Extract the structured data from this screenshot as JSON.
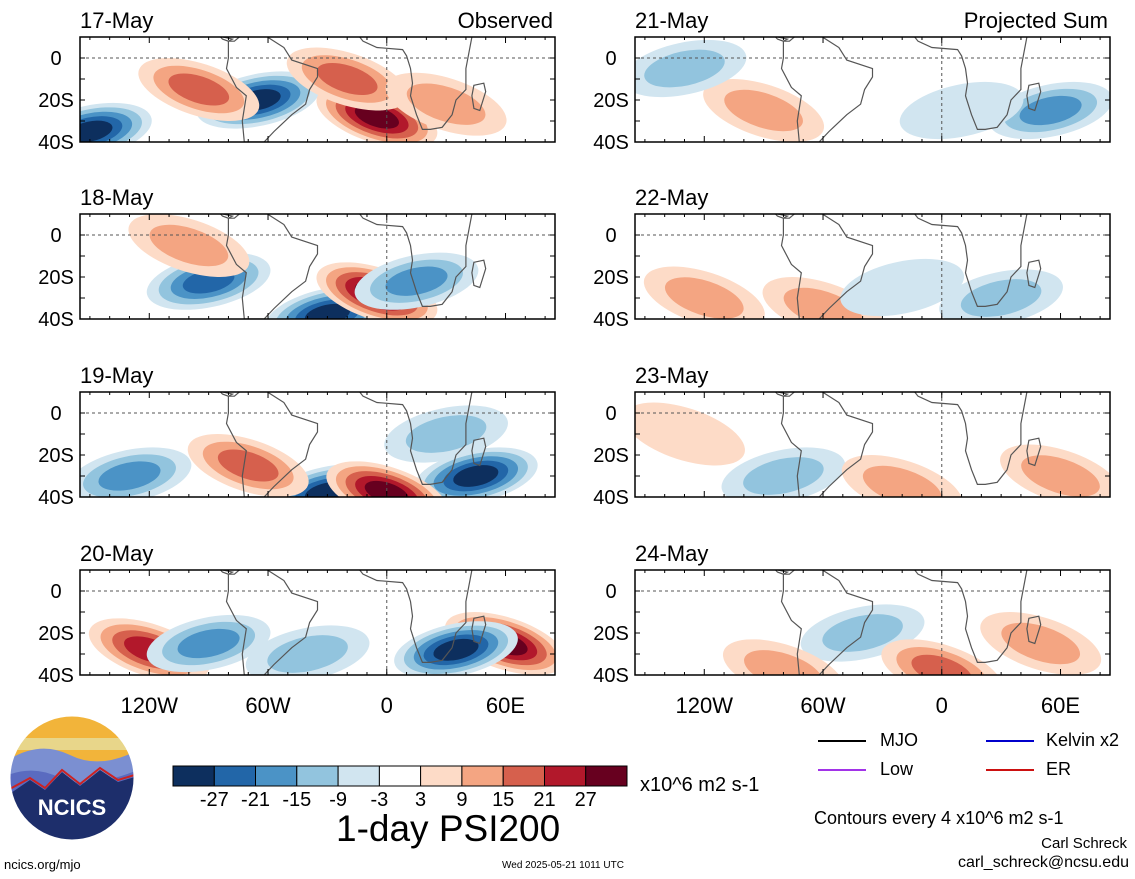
{
  "figure": {
    "main_title": "1-day PSI200",
    "units": "x10^6 m2 s-1",
    "contour_note": "Contours every 4 x10^6 m2 s-1",
    "author": "Carl Schreck",
    "email": "carl_schreck@ncsu.edu",
    "site": "ncics.org/mjo",
    "timestamp": "Wed 2025-05-21 1011 UTC",
    "logo_text": "NCICS"
  },
  "columns": {
    "left_label": "Observed",
    "right_label": "Projected Sum"
  },
  "colorbar": {
    "colors": [
      "#0d2f5e",
      "#2266a8",
      "#4b93c6",
      "#92c4de",
      "#d1e5f0",
      "#ffffff",
      "#fddbc7",
      "#f4a582",
      "#d6604d",
      "#b2182b",
      "#67001f"
    ],
    "labels": [
      "-27",
      "-21",
      "-15",
      "-9",
      "-3",
      "3",
      "9",
      "15",
      "21",
      "27"
    ]
  },
  "legend": [
    {
      "name": "MJO",
      "color": "#000000"
    },
    {
      "name": "Kelvin x2",
      "color": "#0000cc"
    },
    {
      "name": "Low",
      "color": "#a233e8"
    },
    {
      "name": "ER",
      "color": "#cc1111"
    }
  ],
  "chart_data": [
    {
      "type": "heatmap",
      "title": "17-May",
      "panel_label": "Observed",
      "x_ticks": [
        "120W",
        "60W",
        "0",
        "60E"
      ],
      "y_ticks": [
        "0",
        "20S",
        "40S"
      ],
      "features": [
        {
          "lon": -65,
          "lat": -20,
          "value": -27
        },
        {
          "lon": -150,
          "lat": -35,
          "value": -27
        },
        {
          "lon": -95,
          "lat": -15,
          "value": 15
        },
        {
          "lon": -5,
          "lat": -28,
          "value": 27
        },
        {
          "lon": -20,
          "lat": -10,
          "value": 15
        },
        {
          "lon": 30,
          "lat": -22,
          "value": 9
        }
      ]
    },
    {
      "type": "heatmap",
      "title": "18-May",
      "x_ticks": [
        "120W",
        "60W",
        "0",
        "60E"
      ],
      "y_ticks": [
        "0",
        "20S",
        "40S"
      ],
      "features": [
        {
          "lon": -90,
          "lat": -22,
          "value": -21
        },
        {
          "lon": -30,
          "lat": -38,
          "value": -27
        },
        {
          "lon": -5,
          "lat": -28,
          "value": 27
        },
        {
          "lon": 15,
          "lat": -22,
          "value": -15
        },
        {
          "lon": -100,
          "lat": -5,
          "value": 9
        }
      ]
    },
    {
      "type": "heatmap",
      "title": "19-May",
      "x_ticks": [
        "120W",
        "60W",
        "0",
        "60E"
      ],
      "y_ticks": [
        "0",
        "20S",
        "40S"
      ],
      "features": [
        {
          "lon": -30,
          "lat": -38,
          "value": -27
        },
        {
          "lon": 45,
          "lat": -30,
          "value": -27
        },
        {
          "lon": 0,
          "lat": -38,
          "value": 27
        },
        {
          "lon": 30,
          "lat": -10,
          "value": -9
        },
        {
          "lon": -130,
          "lat": -30,
          "value": -15
        },
        {
          "lon": -70,
          "lat": -25,
          "value": 15
        }
      ]
    },
    {
      "type": "heatmap",
      "title": "20-May",
      "x_ticks": [
        "120W",
        "60W",
        "0",
        "60E"
      ],
      "y_ticks": [
        "0",
        "20S",
        "40S"
      ],
      "features": [
        {
          "lon": -120,
          "lat": -28,
          "value": 21
        },
        {
          "lon": 60,
          "lat": -25,
          "value": 27
        },
        {
          "lon": 35,
          "lat": -28,
          "value": -27
        },
        {
          "lon": -90,
          "lat": -25,
          "value": -15
        },
        {
          "lon": -40,
          "lat": -30,
          "value": -9
        }
      ]
    },
    {
      "type": "heatmap",
      "title": "21-May",
      "panel_label": "Projected Sum",
      "x_ticks": [
        "120W",
        "60W",
        "0",
        "60E"
      ],
      "y_ticks": [
        "0",
        "20S",
        "40S"
      ],
      "features": [
        {
          "lon": 55,
          "lat": -25,
          "value": -15
        },
        {
          "lon": -90,
          "lat": -25,
          "value": 9
        },
        {
          "lon": -130,
          "lat": -5,
          "value": -9
        },
        {
          "lon": 10,
          "lat": -25,
          "value": -3
        }
      ]
    },
    {
      "type": "heatmap",
      "title": "22-May",
      "x_ticks": [
        "120W",
        "60W",
        "0",
        "60E"
      ],
      "y_ticks": [
        "0",
        "20S",
        "40S"
      ],
      "features": [
        {
          "lon": -120,
          "lat": -30,
          "value": 9
        },
        {
          "lon": -60,
          "lat": -35,
          "value": 9
        },
        {
          "lon": 30,
          "lat": -30,
          "value": -9
        },
        {
          "lon": -20,
          "lat": -25,
          "value": -3
        }
      ]
    },
    {
      "type": "heatmap",
      "title": "23-May",
      "x_ticks": [
        "120W",
        "60W",
        "0",
        "60E"
      ],
      "y_ticks": [
        "0",
        "20S",
        "40S"
      ],
      "features": [
        {
          "lon": -80,
          "lat": -30,
          "value": -9
        },
        {
          "lon": 60,
          "lat": -30,
          "value": 9
        },
        {
          "lon": -130,
          "lat": -10,
          "value": 3
        },
        {
          "lon": -20,
          "lat": -35,
          "value": 9
        }
      ]
    },
    {
      "type": "heatmap",
      "title": "24-May",
      "x_ticks": [
        "120W",
        "60W",
        "0",
        "60E"
      ],
      "y_ticks": [
        "0",
        "20S",
        "40S"
      ],
      "features": [
        {
          "lon": -40,
          "lat": -20,
          "value": -9
        },
        {
          "lon": -80,
          "lat": -38,
          "value": 9
        },
        {
          "lon": 0,
          "lat": -38,
          "value": 15
        },
        {
          "lon": 50,
          "lat": -25,
          "value": 9
        }
      ]
    }
  ]
}
